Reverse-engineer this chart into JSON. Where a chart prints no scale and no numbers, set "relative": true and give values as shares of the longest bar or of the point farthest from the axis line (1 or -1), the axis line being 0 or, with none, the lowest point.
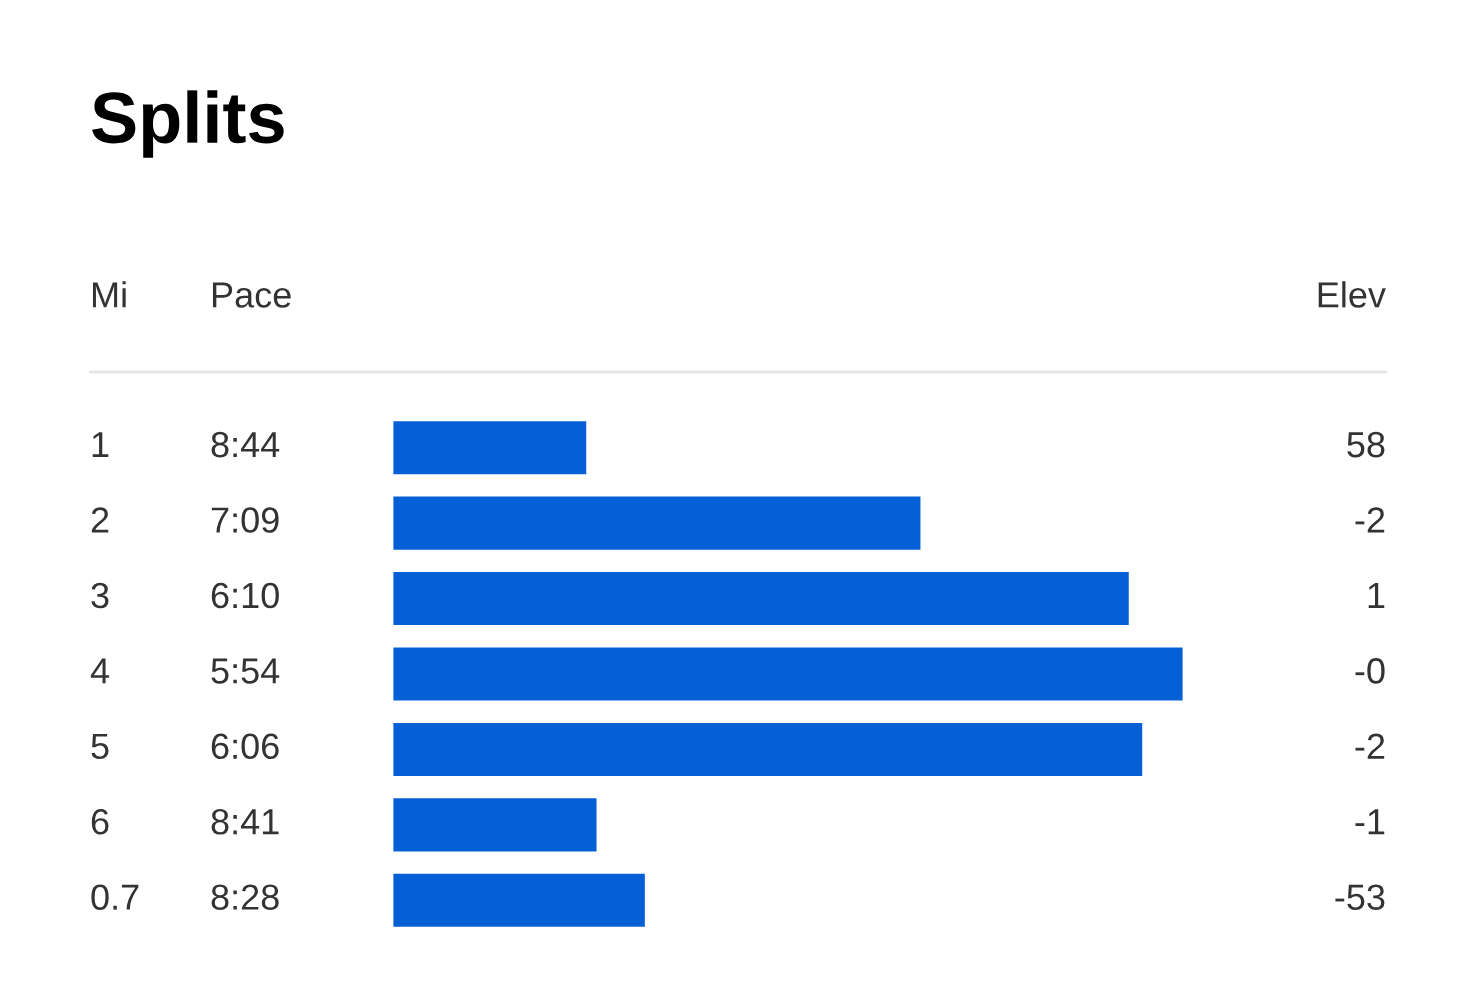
{
  "chart_data": {
    "type": "bar",
    "orientation": "horizontal",
    "relative": true,
    "title": "Splits",
    "ylabel": "Mi",
    "categories": [
      "1",
      "2",
      "3",
      "4",
      "5",
      "6",
      "0.7"
    ],
    "values": [
      0.247,
      0.669,
      0.932,
      1,
      0.949,
      0.26,
      0.321
    ],
    "color": "#0560d6",
    "annotations": [
      "Pace",
      "Elev",
      "8:44",
      "7:09",
      "6:10",
      "5:54",
      "6:06",
      "8:41",
      "8:28",
      "58",
      "-2",
      "1",
      "-0",
      "-2",
      "-1",
      "-53"
    ],
    "legend": false
  }
}
